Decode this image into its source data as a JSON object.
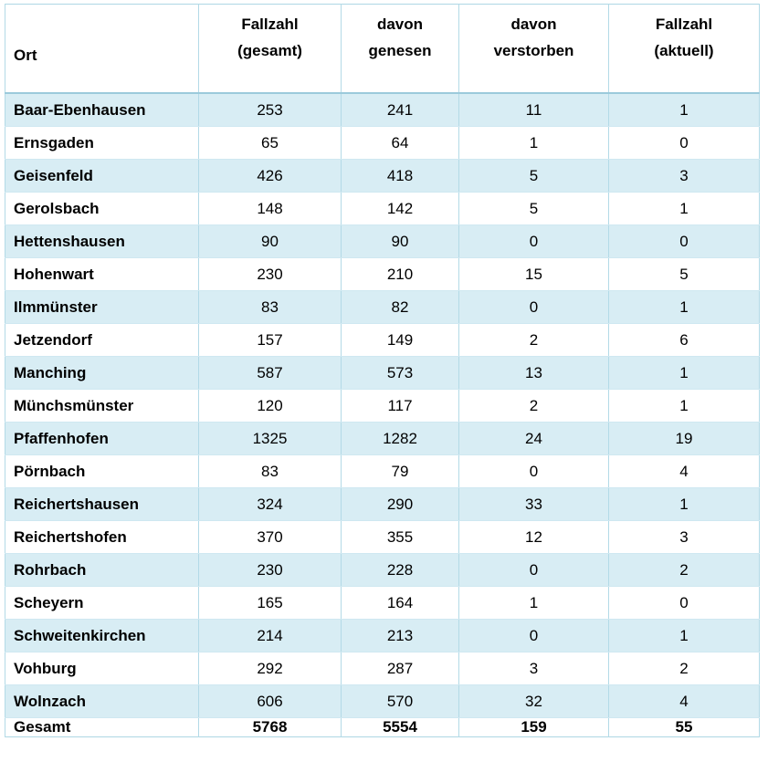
{
  "table": {
    "columns": [
      {
        "line1": "Ort",
        "line2": ""
      },
      {
        "line1": "Fallzahl",
        "line2": "(gesamt)"
      },
      {
        "line1": "davon",
        "line2": "genesen"
      },
      {
        "line1": "davon",
        "line2": "verstorben"
      },
      {
        "line1": "Fallzahl",
        "line2": "(aktuell)"
      }
    ],
    "rows": [
      {
        "ort": "Baar-Ebenhausen",
        "fallzahl_gesamt": "253",
        "davon_genesen": "241",
        "davon_verstorben": "11",
        "fallzahl_aktuell": "1"
      },
      {
        "ort": "Ernsgaden",
        "fallzahl_gesamt": "65",
        "davon_genesen": "64",
        "davon_verstorben": "1",
        "fallzahl_aktuell": "0"
      },
      {
        "ort": "Geisenfeld",
        "fallzahl_gesamt": "426",
        "davon_genesen": "418",
        "davon_verstorben": "5",
        "fallzahl_aktuell": "3"
      },
      {
        "ort": "Gerolsbach",
        "fallzahl_gesamt": "148",
        "davon_genesen": "142",
        "davon_verstorben": "5",
        "fallzahl_aktuell": "1"
      },
      {
        "ort": "Hettenshausen",
        "fallzahl_gesamt": "90",
        "davon_genesen": "90",
        "davon_verstorben": "0",
        "fallzahl_aktuell": "0"
      },
      {
        "ort": "Hohenwart",
        "fallzahl_gesamt": "230",
        "davon_genesen": "210",
        "davon_verstorben": "15",
        "fallzahl_aktuell": "5"
      },
      {
        "ort": "Ilmmünster",
        "fallzahl_gesamt": "83",
        "davon_genesen": "82",
        "davon_verstorben": "0",
        "fallzahl_aktuell": "1"
      },
      {
        "ort": "Jetzendorf",
        "fallzahl_gesamt": "157",
        "davon_genesen": "149",
        "davon_verstorben": "2",
        "fallzahl_aktuell": "6"
      },
      {
        "ort": "Manching",
        "fallzahl_gesamt": "587",
        "davon_genesen": "573",
        "davon_verstorben": "13",
        "fallzahl_aktuell": "1"
      },
      {
        "ort": "Münchsmünster",
        "fallzahl_gesamt": "120",
        "davon_genesen": "117",
        "davon_verstorben": "2",
        "fallzahl_aktuell": "1"
      },
      {
        "ort": "Pfaffenhofen",
        "fallzahl_gesamt": "1325",
        "davon_genesen": "1282",
        "davon_verstorben": "24",
        "fallzahl_aktuell": "19"
      },
      {
        "ort": "Pörnbach",
        "fallzahl_gesamt": "83",
        "davon_genesen": "79",
        "davon_verstorben": "0",
        "fallzahl_aktuell": "4"
      },
      {
        "ort": "Reichertshausen",
        "fallzahl_gesamt": "324",
        "davon_genesen": "290",
        "davon_verstorben": "33",
        "fallzahl_aktuell": "1"
      },
      {
        "ort": "Reichertshofen",
        "fallzahl_gesamt": "370",
        "davon_genesen": "355",
        "davon_verstorben": "12",
        "fallzahl_aktuell": "3"
      },
      {
        "ort": "Rohrbach",
        "fallzahl_gesamt": "230",
        "davon_genesen": "228",
        "davon_verstorben": "0",
        "fallzahl_aktuell": "2"
      },
      {
        "ort": "Scheyern",
        "fallzahl_gesamt": "165",
        "davon_genesen": "164",
        "davon_verstorben": "1",
        "fallzahl_aktuell": "0"
      },
      {
        "ort": "Schweitenkirchen",
        "fallzahl_gesamt": "214",
        "davon_genesen": "213",
        "davon_verstorben": "0",
        "fallzahl_aktuell": "1"
      },
      {
        "ort": "Vohburg",
        "fallzahl_gesamt": "292",
        "davon_genesen": "287",
        "davon_verstorben": "3",
        "fallzahl_aktuell": "2"
      },
      {
        "ort": "Wolnzach",
        "fallzahl_gesamt": "606",
        "davon_genesen": "570",
        "davon_verstorben": "32",
        "fallzahl_aktuell": "4"
      }
    ],
    "total": {
      "ort": "Gesamt",
      "fallzahl_gesamt": "5768",
      "davon_genesen": "5554",
      "davon_verstorben": "159",
      "fallzahl_aktuell": "55"
    }
  },
  "colors": {
    "row_alt": "#d8edf4",
    "row_base": "#ffffff",
    "grid_vertical": "#b3dae7",
    "grid_horizontal": "#cfe8f1",
    "header_rule": "#9bcadb",
    "outer_border": "#aed7e4",
    "text": "#000000"
  }
}
